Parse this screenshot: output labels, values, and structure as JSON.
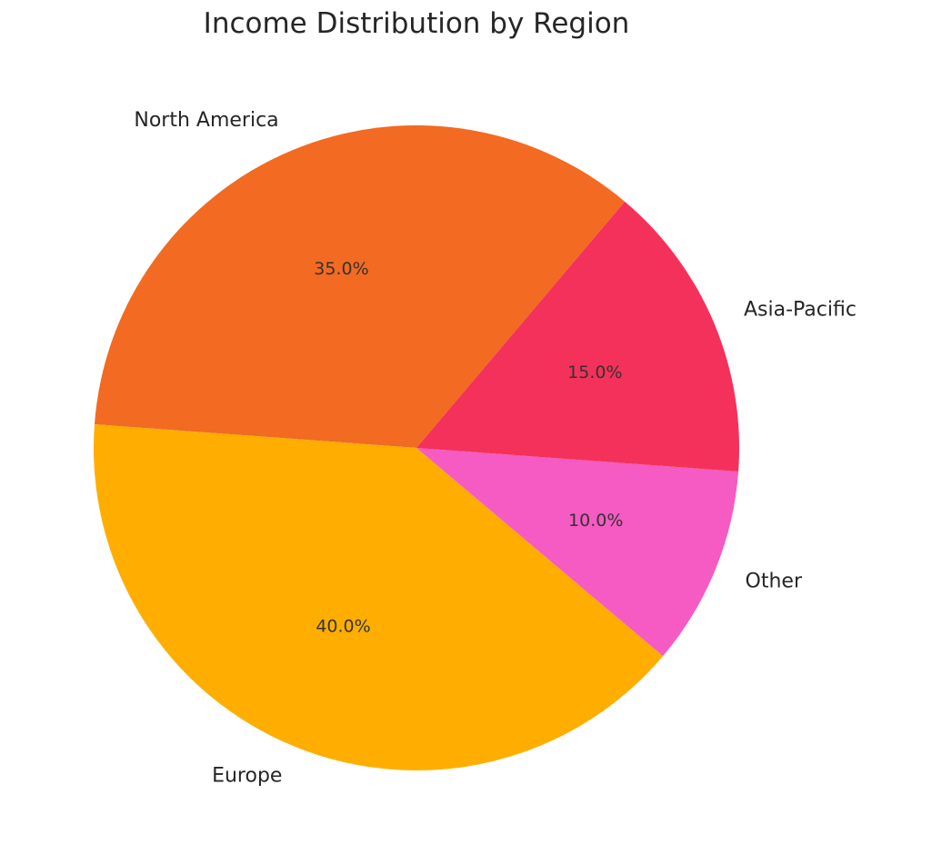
{
  "chart_data": {
    "type": "pie",
    "title": "Income Distribution by Region",
    "slices": [
      {
        "label": "North America",
        "value": 35.0,
        "pct_text": "35.0%",
        "color": "#F36A22"
      },
      {
        "label": "Europe",
        "value": 40.0,
        "pct_text": "40.0%",
        "color": "#FFAE00"
      },
      {
        "label": "Other",
        "value": 10.0,
        "pct_text": "10.0%",
        "color": "#F65AC3"
      },
      {
        "label": "Asia-Pacific",
        "value": 15.0,
        "pct_text": "15.0%",
        "color": "#F4315A"
      }
    ],
    "legend": "none"
  }
}
